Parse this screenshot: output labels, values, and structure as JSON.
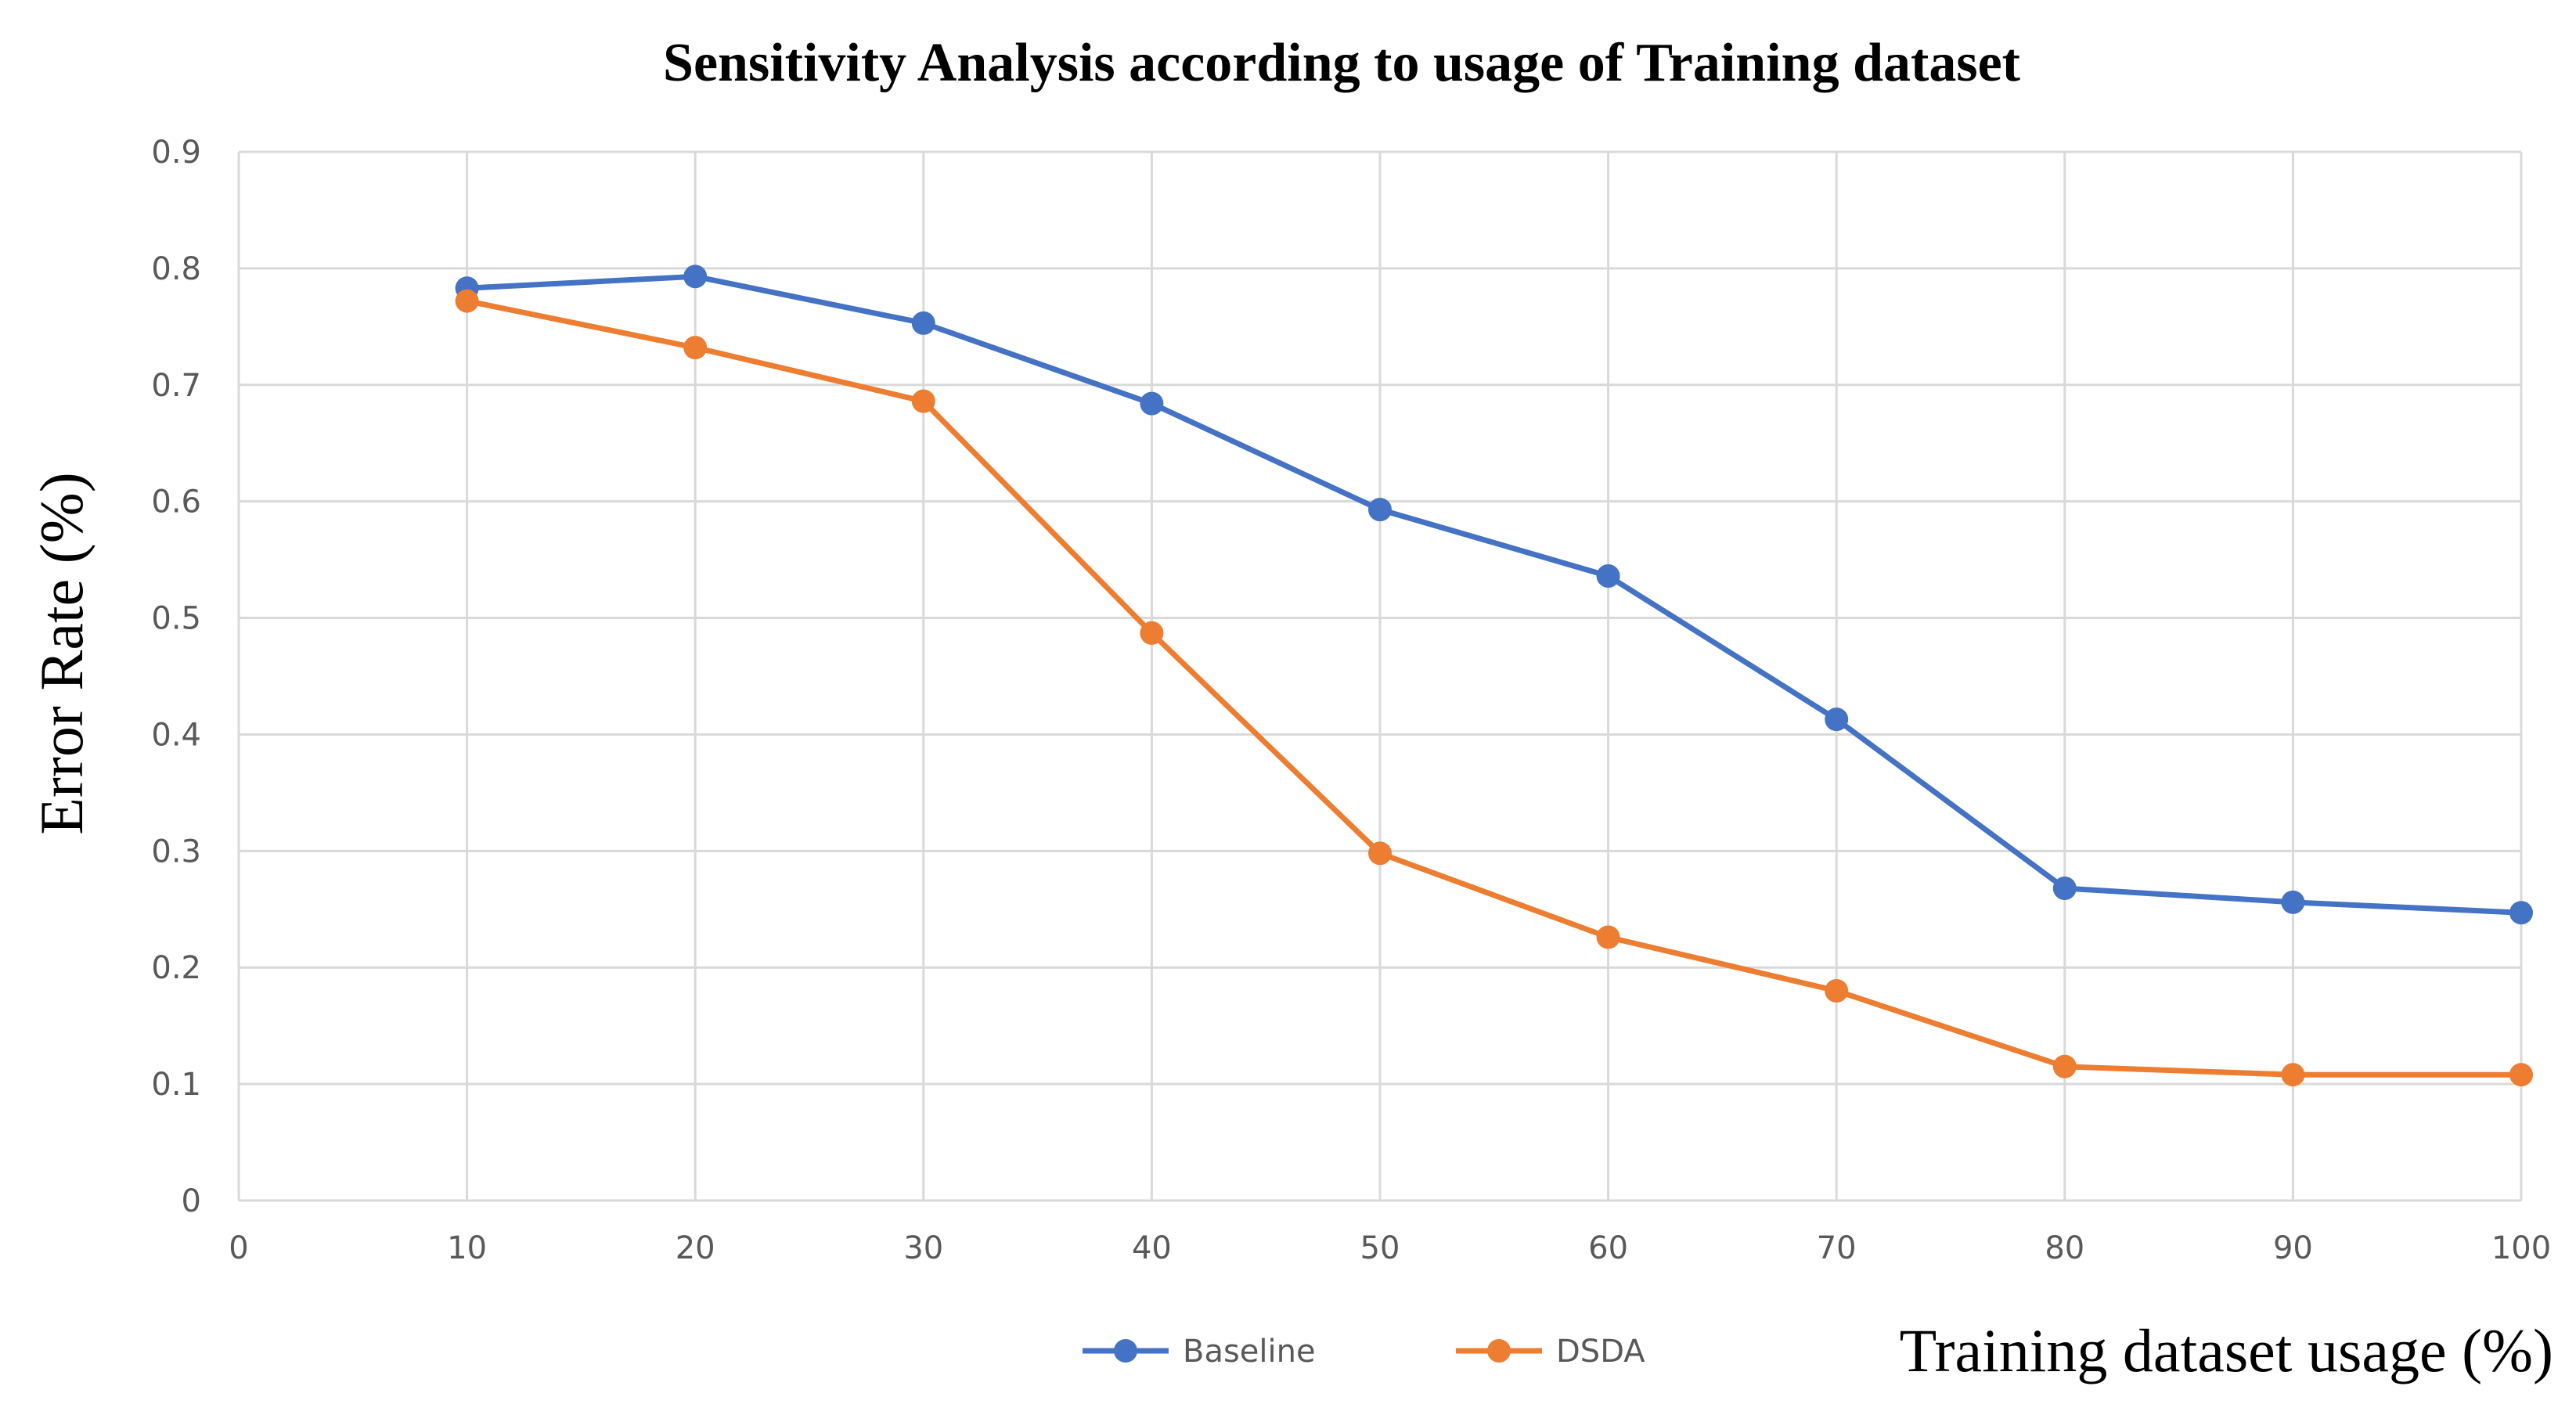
{
  "chart_data": {
    "type": "line",
    "title": "Sensitivity Analysis according to usage of Training dataset",
    "xlabel": "Training dataset usage (%)",
    "ylabel": "Error Rate (%)",
    "xlim": [
      0,
      100
    ],
    "ylim": [
      0,
      0.9
    ],
    "x_ticks": [
      "0",
      "10",
      "20",
      "30",
      "40",
      "50",
      "60",
      "70",
      "80",
      "90",
      "100"
    ],
    "y_ticks": [
      "0",
      "0.1",
      "0.2",
      "0.3",
      "0.4",
      "0.5",
      "0.6",
      "0.7",
      "0.8",
      "0.9"
    ],
    "grid": true,
    "legend_position": "bottom",
    "x": [
      10,
      20,
      30,
      40,
      50,
      60,
      70,
      80,
      90,
      100
    ],
    "series": [
      {
        "name": "Baseline",
        "color": "#4472c4",
        "values": [
          0.783,
          0.793,
          0.753,
          0.684,
          0.593,
          0.536,
          0.413,
          0.268,
          0.256,
          0.247
        ]
      },
      {
        "name": "DSDA",
        "color": "#ed7d31",
        "values": [
          0.772,
          0.732,
          0.686,
          0.487,
          0.298,
          0.226,
          0.18,
          0.115,
          0.108,
          0.108
        ]
      }
    ]
  }
}
